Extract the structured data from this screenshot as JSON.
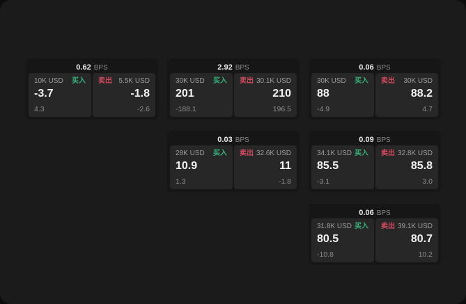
{
  "colors": {
    "buy_green": "#35b57a",
    "sell_red": "#d04a5e",
    "window_bg": "#1b1b1b",
    "card_bg": "#161616",
    "panel_bg": "#272727"
  },
  "cards": [
    {
      "bps_value": "0.62",
      "bps_unit": "BPS",
      "buy": {
        "amount": "10K USD",
        "label": "买入",
        "price": "-3.7",
        "change": "4.3"
      },
      "sell": {
        "label": "卖出",
        "amount": "5.5K USD",
        "price": "-1.8",
        "change": "-2.6"
      }
    },
    {
      "bps_value": "2.92",
      "bps_unit": "BPS",
      "buy": {
        "amount": "30K USD",
        "label": "买入",
        "price": "201",
        "change": "-188.1"
      },
      "sell": {
        "label": "卖出",
        "amount": "30.1K USD",
        "price": "210",
        "change": "196.5"
      }
    },
    {
      "bps_value": "0.06",
      "bps_unit": "BPS",
      "buy": {
        "amount": "30K USD",
        "label": "买入",
        "price": "88",
        "change": "-4.9"
      },
      "sell": {
        "label": "卖出",
        "amount": "30K USD",
        "price": "88.2",
        "change": "4.7"
      }
    },
    {
      "bps_value": "0.03",
      "bps_unit": "BPS",
      "buy": {
        "amount": "28K USD",
        "label": "买入",
        "price": "10.9",
        "change": "1.3"
      },
      "sell": {
        "label": "卖出",
        "amount": "32.6K USD",
        "price": "11",
        "change": "-1.8"
      }
    },
    {
      "bps_value": "0.09",
      "bps_unit": "BPS",
      "buy": {
        "amount": "34.1K USD",
        "label": "买入",
        "price": "85.5",
        "change": "-3.1"
      },
      "sell": {
        "label": "卖出",
        "amount": "32.8K USD",
        "price": "85.8",
        "change": "3.0"
      }
    },
    {
      "bps_value": "0.06",
      "bps_unit": "BPS",
      "buy": {
        "amount": "31.8K USD",
        "label": "买入",
        "price": "80.5",
        "change": "-10.8"
      },
      "sell": {
        "label": "卖出",
        "amount": "39.1K USD",
        "price": "80.7",
        "change": "10.2"
      }
    }
  ]
}
